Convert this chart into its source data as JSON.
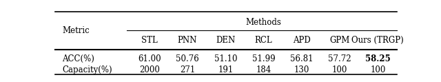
{
  "title_row": "Methods",
  "col_header_label": "Metric",
  "col_headers": [
    "STL",
    "PNN",
    "DEN",
    "RCL",
    "APD",
    "GPM",
    "Ours (TRGP)"
  ],
  "row_labels": [
    "ACC(%)",
    "Capacity(%)"
  ],
  "data": [
    [
      "61.00",
      "50.76",
      "51.10",
      "51.99",
      "56.81",
      "57.72",
      "58.25"
    ],
    [
      "2000",
      "271",
      "191",
      "184",
      "130",
      "100",
      "100"
    ]
  ],
  "bold_cells": [
    [
      0,
      6
    ]
  ],
  "figsize": [
    6.4,
    1.19
  ],
  "dpi": 100
}
